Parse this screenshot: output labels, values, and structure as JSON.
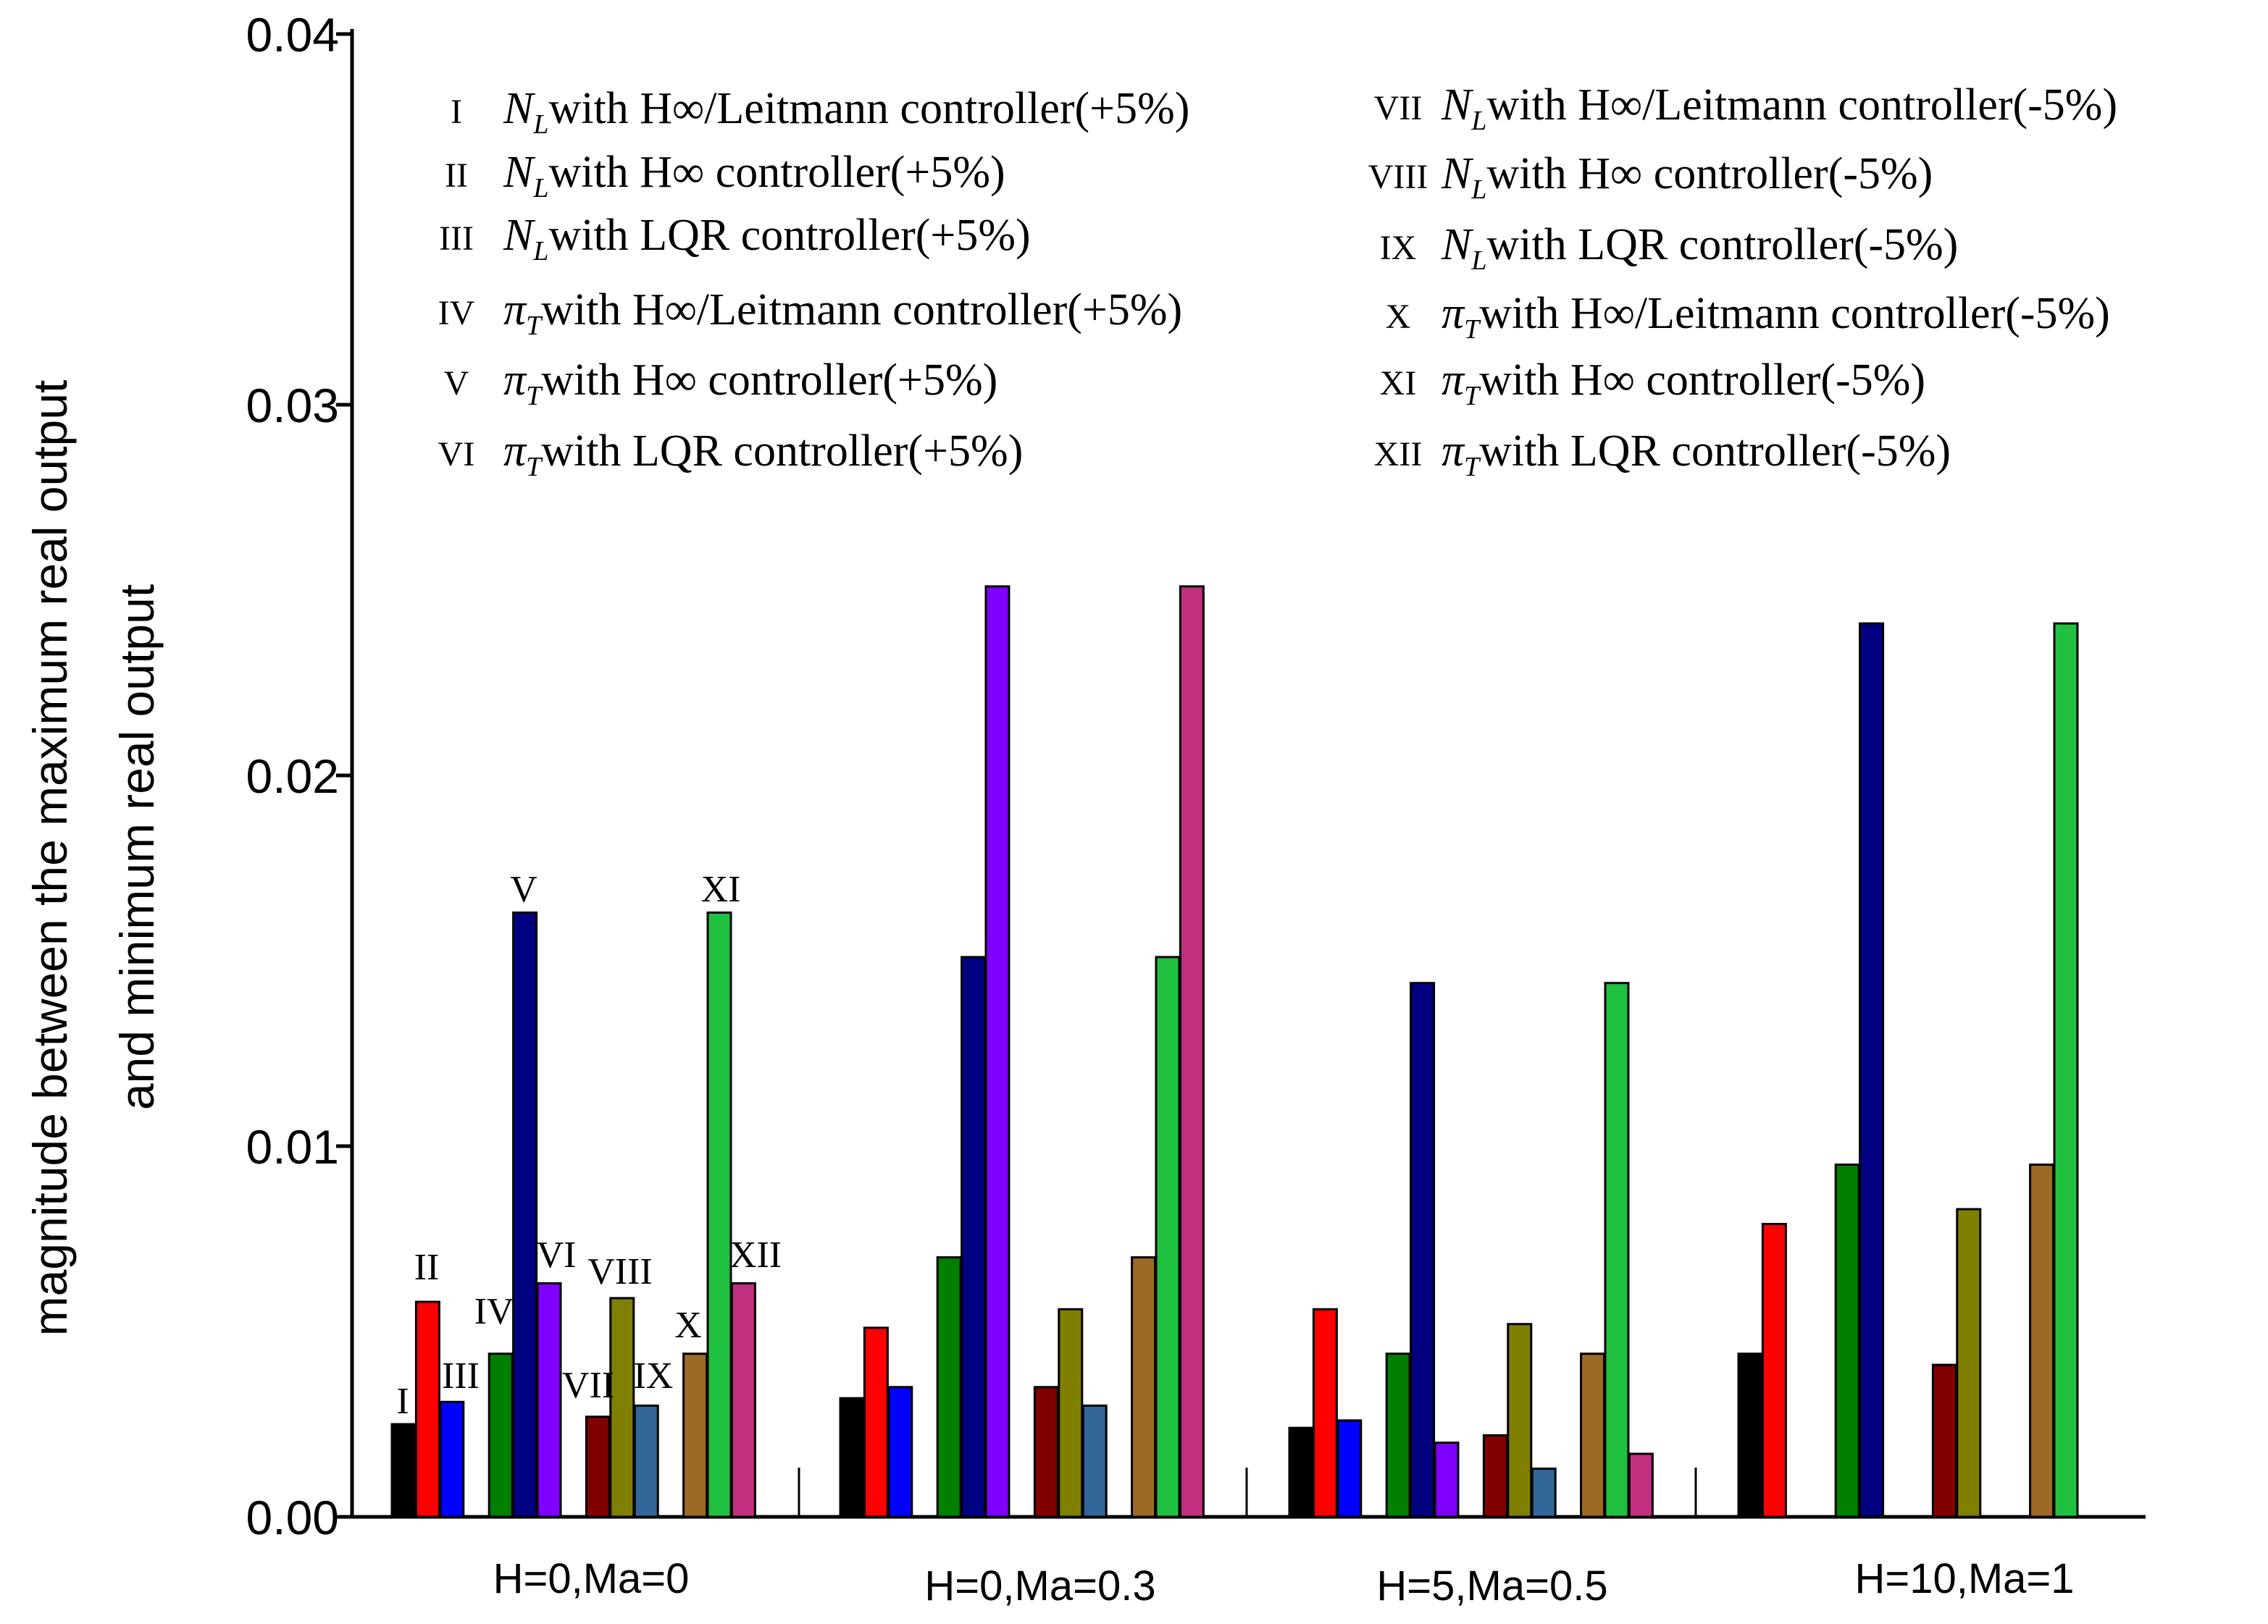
{
  "chart_data": {
    "type": "bar",
    "title": "",
    "ylabel_lines": [
      "magnitude between the maximum real output",
      "and minimum real output"
    ],
    "xlabel": "",
    "ylim": [
      0,
      0.04
    ],
    "yticks": [
      0.0,
      0.01,
      0.02,
      0.03,
      0.04
    ],
    "ytick_labels": [
      "0.00",
      "0.01",
      "0.02",
      "0.03",
      "0.04"
    ],
    "grid": false,
    "legend_position": "top",
    "categories": [
      "H=0,Ma=0",
      "H=0,Ma=0.3",
      "H=5,Ma=0.5",
      "H=10,Ma=1"
    ],
    "series": [
      {
        "id": "I",
        "numeral": "I",
        "var": "N",
        "sub": "L",
        "text": "with H∞/Leitmann controller(+5%)",
        "color": "#000000",
        "values": [
          0.0025,
          0.0032,
          0.0024,
          0.0044
        ]
      },
      {
        "id": "II",
        "numeral": "II",
        "var": "N",
        "sub": "L",
        "text": "with H∞ controller(+5%)",
        "color": "#ff0000",
        "values": [
          0.0058,
          0.0051,
          0.0056,
          0.0079
        ]
      },
      {
        "id": "III",
        "numeral": "III",
        "var": "N",
        "sub": "L",
        "text": "with LQR controller(+5%)",
        "color": "#0000ff",
        "values": [
          0.0031,
          0.0035,
          0.0026,
          null
        ]
      },
      {
        "id": "IV",
        "numeral": "IV",
        "var": "π",
        "sub": "T",
        "text": "with H∞/Leitmann controller(+5%)",
        "color": "#007f00",
        "values": [
          0.0044,
          0.007,
          0.0044,
          0.0095
        ]
      },
      {
        "id": "V",
        "numeral": "V",
        "var": "π",
        "sub": "T",
        "text": "with H∞ controller(+5%)",
        "color": "#000080",
        "values": [
          0.0163,
          0.0151,
          0.0144,
          0.0241
        ]
      },
      {
        "id": "VI",
        "numeral": "VI",
        "var": "π",
        "sub": "T",
        "text": "with LQR controller(+5%)",
        "color": "#8000ff",
        "values": [
          0.0063,
          0.0251,
          0.002,
          null
        ]
      },
      {
        "id": "VII",
        "numeral": "VII",
        "var": "N",
        "sub": "L",
        "text": "with H∞/Leitmann controller(-5%)",
        "color": "#800000",
        "values": [
          0.0027,
          0.0035,
          0.0022,
          0.0041
        ]
      },
      {
        "id": "VIII",
        "numeral": "VIII",
        "var": "N",
        "sub": "L",
        "text": "with H∞ controller(-5%)",
        "color": "#808000",
        "values": [
          0.0059,
          0.0056,
          0.0052,
          0.0083
        ]
      },
      {
        "id": "IX",
        "numeral": "IX",
        "var": "N",
        "sub": "L",
        "text": "with LQR controller(-5%)",
        "color": "#336699",
        "values": [
          0.003,
          0.003,
          0.0013,
          null
        ]
      },
      {
        "id": "X",
        "numeral": "X",
        "var": "π",
        "sub": "T",
        "text": "with H∞/Leitmann controller(-5%)",
        "color": "#9c6a26",
        "values": [
          0.0044,
          0.007,
          0.0044,
          0.0095
        ]
      },
      {
        "id": "XI",
        "numeral": "XI",
        "var": "π",
        "sub": "T",
        "text": "with H∞ controller(-5%)",
        "color": "#20c040",
        "values": [
          0.0163,
          0.0151,
          0.0144,
          0.0241
        ]
      },
      {
        "id": "XII",
        "numeral": "XII",
        "var": "π",
        "sub": "T",
        "text": "with LQR controller(-5%)",
        "color": "#c0307f",
        "values": [
          0.0063,
          0.0251,
          0.0017,
          null
        ]
      }
    ],
    "annotations": [
      "I",
      "II",
      "III",
      "IV",
      "V",
      "VI",
      "VII",
      "VIII",
      "IX",
      "X",
      "XI",
      "XII"
    ]
  }
}
